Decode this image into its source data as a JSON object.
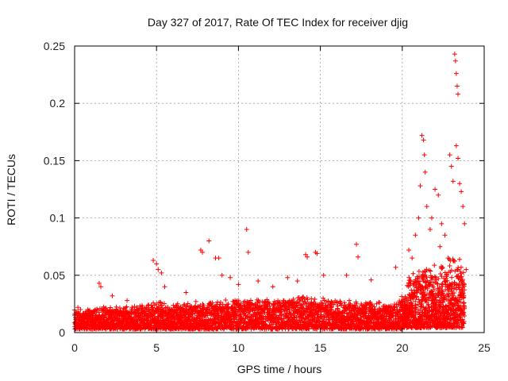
{
  "chart_data": {
    "type": "scatter",
    "title": "Day 327 of 2017, Rate Of TEC Index for receiver djig",
    "xlabel": "GPS time / hours",
    "ylabel": "ROTI / TECUs",
    "xlim": [
      0,
      25
    ],
    "ylim": [
      0,
      0.25
    ],
    "xticks": [
      0,
      5,
      10,
      15,
      20,
      25
    ],
    "yticks": [
      0,
      0.05,
      0.1,
      0.15,
      0.2,
      0.25
    ],
    "xtick_labels": [
      "0",
      "5",
      "10",
      "15",
      "20",
      "25"
    ],
    "ytick_labels": [
      "0",
      "0.05",
      "0.1",
      "0.15",
      "0.2",
      "0.25"
    ],
    "grid": true,
    "marker": "+",
    "series": [
      {
        "name": "ROTI",
        "color": "#ff0000",
        "base_envelope": [
          [
            0.0,
            0.015
          ],
          [
            2.0,
            0.017
          ],
          [
            4.0,
            0.018
          ],
          [
            5.0,
            0.022
          ],
          [
            6.0,
            0.02
          ],
          [
            8.0,
            0.022
          ],
          [
            10.0,
            0.024
          ],
          [
            12.0,
            0.024
          ],
          [
            14.0,
            0.026
          ],
          [
            16.0,
            0.024
          ],
          [
            18.0,
            0.022
          ],
          [
            19.5,
            0.02
          ],
          [
            20.0,
            0.026
          ],
          [
            21.0,
            0.038
          ],
          [
            22.0,
            0.04
          ],
          [
            23.0,
            0.048
          ],
          [
            23.8,
            0.045
          ]
        ],
        "outliers": [
          [
            0.2,
            0.022
          ],
          [
            1.5,
            0.043
          ],
          [
            1.6,
            0.04
          ],
          [
            2.3,
            0.032
          ],
          [
            3.2,
            0.028
          ],
          [
            4.8,
            0.063
          ],
          [
            5.0,
            0.06
          ],
          [
            5.1,
            0.055
          ],
          [
            5.3,
            0.052
          ],
          [
            5.5,
            0.04
          ],
          [
            6.8,
            0.035
          ],
          [
            7.7,
            0.072
          ],
          [
            7.8,
            0.07
          ],
          [
            8.2,
            0.08
          ],
          [
            8.6,
            0.065
          ],
          [
            8.8,
            0.065
          ],
          [
            9.0,
            0.05
          ],
          [
            9.5,
            0.048
          ],
          [
            10.0,
            0.042
          ],
          [
            10.5,
            0.09
          ],
          [
            10.6,
            0.07
          ],
          [
            11.2,
            0.045
          ],
          [
            12.1,
            0.04
          ],
          [
            13.0,
            0.048
          ],
          [
            13.6,
            0.045
          ],
          [
            14.1,
            0.068
          ],
          [
            14.2,
            0.066
          ],
          [
            14.7,
            0.07
          ],
          [
            14.8,
            0.069
          ],
          [
            15.2,
            0.05
          ],
          [
            16.6,
            0.05
          ],
          [
            17.2,
            0.077
          ],
          [
            17.3,
            0.066
          ],
          [
            18.1,
            0.046
          ],
          [
            19.6,
            0.057
          ],
          [
            20.4,
            0.072
          ],
          [
            20.6,
            0.065
          ],
          [
            20.8,
            0.085
          ],
          [
            21.0,
            0.1
          ],
          [
            21.1,
            0.128
          ],
          [
            21.2,
            0.172
          ],
          [
            21.3,
            0.168
          ],
          [
            21.35,
            0.155
          ],
          [
            21.4,
            0.14
          ],
          [
            21.5,
            0.11
          ],
          [
            21.8,
            0.1
          ],
          [
            22.0,
            0.125
          ],
          [
            22.2,
            0.12
          ],
          [
            22.4,
            0.095
          ],
          [
            22.6,
            0.085
          ],
          [
            22.9,
            0.155
          ],
          [
            23.0,
            0.145
          ],
          [
            23.1,
            0.132
          ],
          [
            23.2,
            0.243
          ],
          [
            23.25,
            0.237
          ],
          [
            23.3,
            0.226
          ],
          [
            23.35,
            0.215
          ],
          [
            23.4,
            0.208
          ],
          [
            23.3,
            0.163
          ],
          [
            23.4,
            0.152
          ],
          [
            23.5,
            0.13
          ],
          [
            23.7,
            0.11
          ],
          [
            23.8,
            0.095
          ],
          [
            23.6,
            0.123
          ],
          [
            21.7,
            0.09
          ],
          [
            22.3,
            0.075
          ],
          [
            22.8,
            0.065
          ],
          [
            23.9,
            0.055
          ]
        ]
      }
    ]
  }
}
